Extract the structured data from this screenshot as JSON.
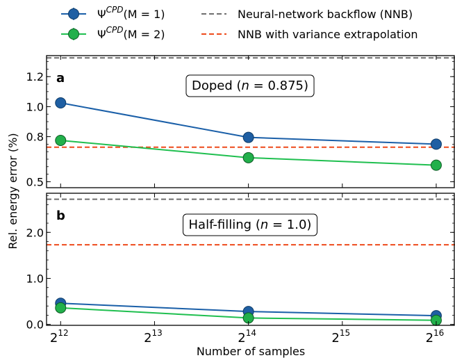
{
  "colors": {
    "m1": "#1f5fa3",
    "m1_line": "#1a5fa8",
    "m2": "#22b04b",
    "m2_line": "#1fbf4f",
    "nnb": "#6e6e6e",
    "nnb_var": "#ee4a1b"
  },
  "legend": {
    "m1_label": "Ψ",
    "m1_sup": "CPD",
    "m1_rest": "(M = 1)",
    "m2_label": "Ψ",
    "m2_sup": "CPD",
    "m2_rest": "(M = 2)",
    "nnb_label": "Neural-network backflow (NNB)",
    "nnb_var_label": "NNB with variance extrapolation"
  },
  "ylabel": "Rel. energy error (%)",
  "xlabel": "Number of samples",
  "chart_data": [
    {
      "type": "line",
      "panel": "a",
      "annotation": "Doped (n = 0.875)",
      "annotation_parts": {
        "pre": "Doped (",
        "var": "n",
        "post": " = 0.875)"
      },
      "x_log2": [
        12,
        14,
        16
      ],
      "xticks": [
        {
          "base": "2",
          "exp": "12"
        },
        {
          "base": "2",
          "exp": "13"
        },
        {
          "base": "2",
          "exp": "14"
        },
        {
          "base": "2",
          "exp": "15"
        },
        {
          "base": "2",
          "exp": "16"
        }
      ],
      "xlim_log2": [
        11.85,
        16.2
      ],
      "ylim": [
        0.46,
        1.34
      ],
      "yticks": [
        0.5,
        0.8,
        1.0,
        1.2
      ],
      "ytick_labels": [
        "0.5",
        "0.8",
        "1.0",
        "1.2"
      ],
      "series": [
        {
          "key": "m1",
          "values": [
            1.025,
            0.795,
            0.75
          ]
        },
        {
          "key": "m2",
          "values": [
            0.775,
            0.66,
            0.61
          ]
        }
      ],
      "hlines": [
        {
          "key": "nnb",
          "value": 1.325
        },
        {
          "key": "nnb_var",
          "value": 0.73
        }
      ]
    },
    {
      "type": "line",
      "panel": "b",
      "annotation": "Half-filling (n = 1.0)",
      "annotation_parts": {
        "pre": "Half-filling (",
        "var": "n",
        "post": " = 1.0)"
      },
      "x_log2": [
        12,
        14,
        16
      ],
      "xticks": [
        {
          "base": "2",
          "exp": "12"
        },
        {
          "base": "2",
          "exp": "13"
        },
        {
          "base": "2",
          "exp": "14"
        },
        {
          "base": "2",
          "exp": "15"
        },
        {
          "base": "2",
          "exp": "16"
        }
      ],
      "xlim_log2": [
        11.85,
        16.2
      ],
      "ylim": [
        -0.02,
        2.85
      ],
      "yticks": [
        0.0,
        1.0,
        2.0
      ],
      "ytick_labels": [
        "0.0",
        "1.0",
        "2.0"
      ],
      "series": [
        {
          "key": "m1",
          "values": [
            0.46,
            0.28,
            0.19
          ]
        },
        {
          "key": "m2",
          "values": [
            0.36,
            0.14,
            0.09
          ]
        }
      ],
      "hlines": [
        {
          "key": "nnb",
          "value": 2.72
        },
        {
          "key": "nnb_var",
          "value": 1.73
        }
      ]
    }
  ]
}
